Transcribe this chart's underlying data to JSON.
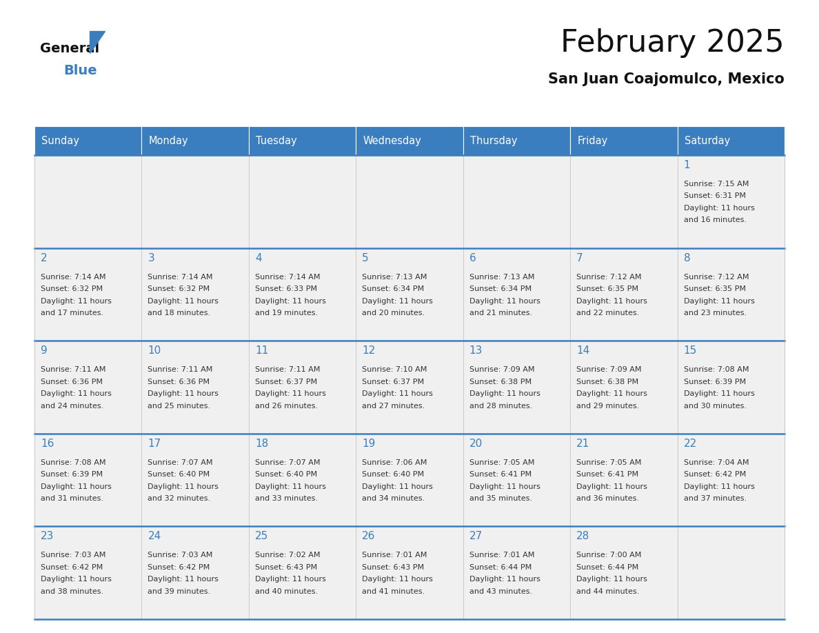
{
  "title": "February 2025",
  "subtitle": "San Juan Coajomulco, Mexico",
  "header_color": "#3a7ebf",
  "header_text_color": "#ffffff",
  "cell_bg_color": "#f0f0f0",
  "text_color": "#333333",
  "border_color": "#3a7ebf",
  "line_color": "#bbbbbb",
  "days_of_week": [
    "Sunday",
    "Monday",
    "Tuesday",
    "Wednesday",
    "Thursday",
    "Friday",
    "Saturday"
  ],
  "calendar_data": [
    [
      null,
      null,
      null,
      null,
      null,
      null,
      {
        "day": "1",
        "sunrise": "7:15 AM",
        "sunset": "6:31 PM",
        "daylight1": "11 hours",
        "daylight2": "and 16 minutes."
      }
    ],
    [
      {
        "day": "2",
        "sunrise": "7:14 AM",
        "sunset": "6:32 PM",
        "daylight1": "11 hours",
        "daylight2": "and 17 minutes."
      },
      {
        "day": "3",
        "sunrise": "7:14 AM",
        "sunset": "6:32 PM",
        "daylight1": "11 hours",
        "daylight2": "and 18 minutes."
      },
      {
        "day": "4",
        "sunrise": "7:14 AM",
        "sunset": "6:33 PM",
        "daylight1": "11 hours",
        "daylight2": "and 19 minutes."
      },
      {
        "day": "5",
        "sunrise": "7:13 AM",
        "sunset": "6:34 PM",
        "daylight1": "11 hours",
        "daylight2": "and 20 minutes."
      },
      {
        "day": "6",
        "sunrise": "7:13 AM",
        "sunset": "6:34 PM",
        "daylight1": "11 hours",
        "daylight2": "and 21 minutes."
      },
      {
        "day": "7",
        "sunrise": "7:12 AM",
        "sunset": "6:35 PM",
        "daylight1": "11 hours",
        "daylight2": "and 22 minutes."
      },
      {
        "day": "8",
        "sunrise": "7:12 AM",
        "sunset": "6:35 PM",
        "daylight1": "11 hours",
        "daylight2": "and 23 minutes."
      }
    ],
    [
      {
        "day": "9",
        "sunrise": "7:11 AM",
        "sunset": "6:36 PM",
        "daylight1": "11 hours",
        "daylight2": "and 24 minutes."
      },
      {
        "day": "10",
        "sunrise": "7:11 AM",
        "sunset": "6:36 PM",
        "daylight1": "11 hours",
        "daylight2": "and 25 minutes."
      },
      {
        "day": "11",
        "sunrise": "7:11 AM",
        "sunset": "6:37 PM",
        "daylight1": "11 hours",
        "daylight2": "and 26 minutes."
      },
      {
        "day": "12",
        "sunrise": "7:10 AM",
        "sunset": "6:37 PM",
        "daylight1": "11 hours",
        "daylight2": "and 27 minutes."
      },
      {
        "day": "13",
        "sunrise": "7:09 AM",
        "sunset": "6:38 PM",
        "daylight1": "11 hours",
        "daylight2": "and 28 minutes."
      },
      {
        "day": "14",
        "sunrise": "7:09 AM",
        "sunset": "6:38 PM",
        "daylight1": "11 hours",
        "daylight2": "and 29 minutes."
      },
      {
        "day": "15",
        "sunrise": "7:08 AM",
        "sunset": "6:39 PM",
        "daylight1": "11 hours",
        "daylight2": "and 30 minutes."
      }
    ],
    [
      {
        "day": "16",
        "sunrise": "7:08 AM",
        "sunset": "6:39 PM",
        "daylight1": "11 hours",
        "daylight2": "and 31 minutes."
      },
      {
        "day": "17",
        "sunrise": "7:07 AM",
        "sunset": "6:40 PM",
        "daylight1": "11 hours",
        "daylight2": "and 32 minutes."
      },
      {
        "day": "18",
        "sunrise": "7:07 AM",
        "sunset": "6:40 PM",
        "daylight1": "11 hours",
        "daylight2": "and 33 minutes."
      },
      {
        "day": "19",
        "sunrise": "7:06 AM",
        "sunset": "6:40 PM",
        "daylight1": "11 hours",
        "daylight2": "and 34 minutes."
      },
      {
        "day": "20",
        "sunrise": "7:05 AM",
        "sunset": "6:41 PM",
        "daylight1": "11 hours",
        "daylight2": "and 35 minutes."
      },
      {
        "day": "21",
        "sunrise": "7:05 AM",
        "sunset": "6:41 PM",
        "daylight1": "11 hours",
        "daylight2": "and 36 minutes."
      },
      {
        "day": "22",
        "sunrise": "7:04 AM",
        "sunset": "6:42 PM",
        "daylight1": "11 hours",
        "daylight2": "and 37 minutes."
      }
    ],
    [
      {
        "day": "23",
        "sunrise": "7:03 AM",
        "sunset": "6:42 PM",
        "daylight1": "11 hours",
        "daylight2": "and 38 minutes."
      },
      {
        "day": "24",
        "sunrise": "7:03 AM",
        "sunset": "6:42 PM",
        "daylight1": "11 hours",
        "daylight2": "and 39 minutes."
      },
      {
        "day": "25",
        "sunrise": "7:02 AM",
        "sunset": "6:43 PM",
        "daylight1": "11 hours",
        "daylight2": "and 40 minutes."
      },
      {
        "day": "26",
        "sunrise": "7:01 AM",
        "sunset": "6:43 PM",
        "daylight1": "11 hours",
        "daylight2": "and 41 minutes."
      },
      {
        "day": "27",
        "sunrise": "7:01 AM",
        "sunset": "6:44 PM",
        "daylight1": "11 hours",
        "daylight2": "and 43 minutes."
      },
      {
        "day": "28",
        "sunrise": "7:00 AM",
        "sunset": "6:44 PM",
        "daylight1": "11 hours",
        "daylight2": "and 44 minutes."
      },
      null
    ]
  ]
}
